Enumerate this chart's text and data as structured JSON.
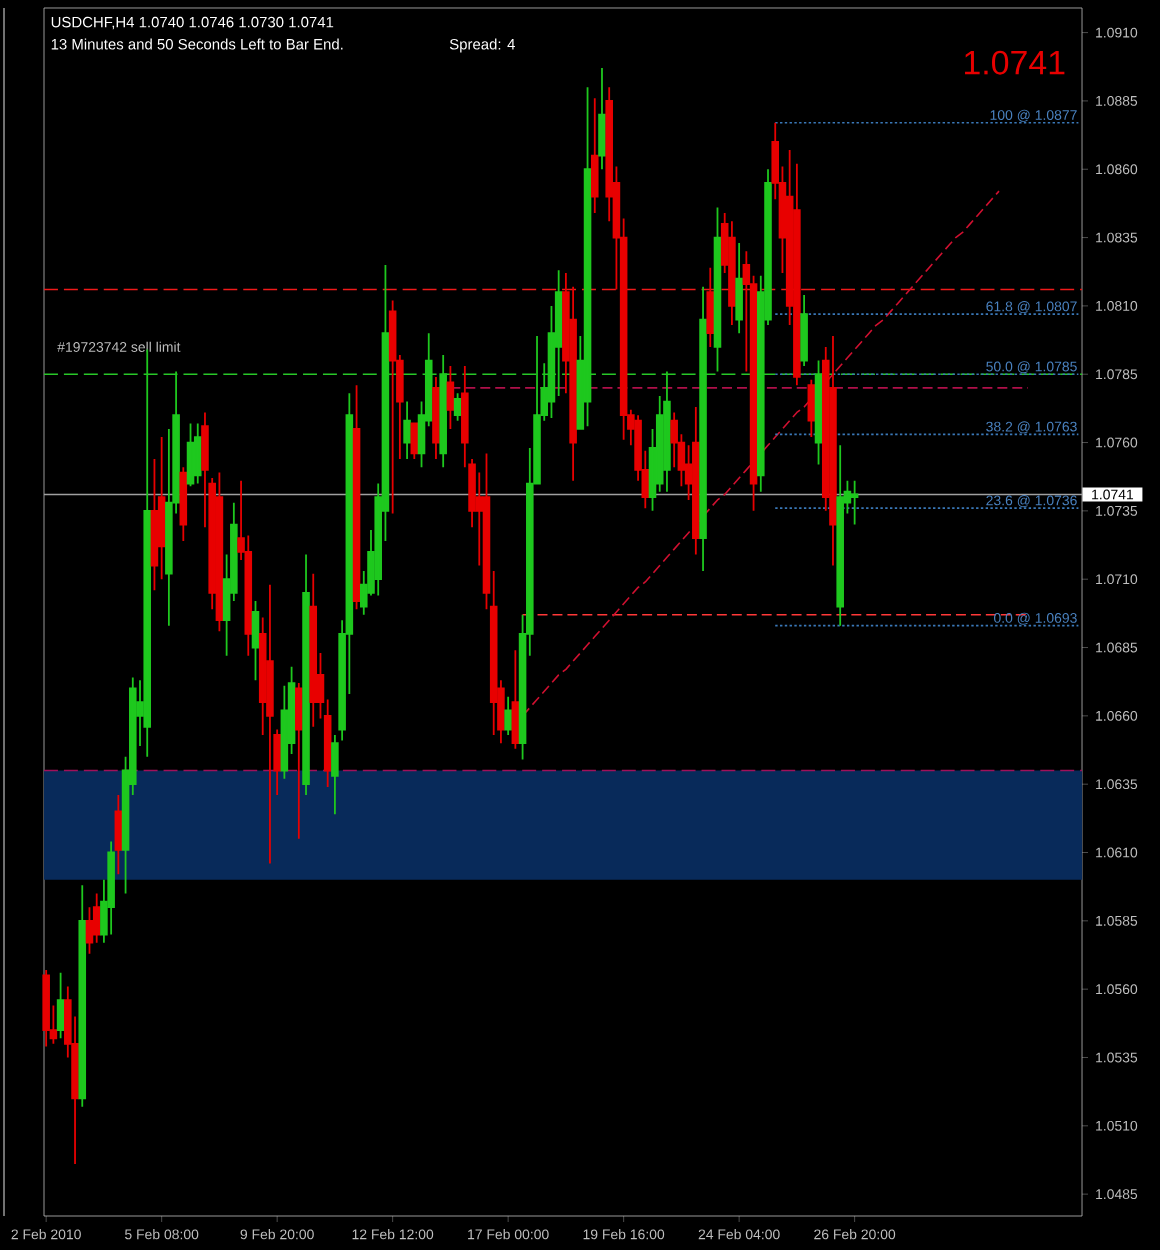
{
  "chart_data": {
    "type": "candlestick",
    "title": "USDCHF,H4  1.0740 1.0746 1.0730 1.0741",
    "subtitle": "13 Minutes and 50 Seconds Left to Bar End.",
    "annotations": [
      "Spread: 4",
      "1.0741",
      {
        "text": "100 @ 1.0877",
        "y": 1.0877
      },
      {
        "text": "61.8 @ 1.0807",
        "y": 1.0807
      },
      {
        "text": "50.0 @ 1.0785",
        "y": 1.0785
      },
      {
        "text": "38.2 @ 1.0763",
        "y": 1.0763
      },
      {
        "text": "23.6 @ 1.0736",
        "y": 1.0736
      },
      {
        "text": "0.0 @ 1.0693",
        "y": 1.0693
      }
    ],
    "categories": [
      "2 Feb 2010",
      null,
      null,
      null,
      null,
      null,
      null,
      null,
      null,
      null,
      null,
      null,
      null,
      null,
      null,
      null,
      "5 Feb 08:00",
      null,
      null,
      null,
      null,
      null,
      null,
      null,
      null,
      null,
      null,
      null,
      null,
      null,
      null,
      null,
      "9 Feb 20:00",
      null,
      null,
      null,
      null,
      null,
      null,
      null,
      null,
      null,
      null,
      null,
      null,
      null,
      null,
      null,
      "12 Feb 12:00",
      null,
      null,
      null,
      null,
      null,
      null,
      null,
      null,
      null,
      null,
      null,
      null,
      null,
      null,
      null,
      "17 Feb 00:00",
      null,
      null,
      null,
      null,
      null,
      null,
      null,
      null,
      null,
      null,
      null,
      null,
      null,
      null,
      null,
      "19 Feb 16:00",
      null,
      null,
      null,
      null,
      null,
      null,
      null,
      null,
      null,
      null,
      null,
      null,
      null,
      null,
      null,
      "24 Feb 04:00",
      null,
      null,
      null,
      null,
      null,
      null,
      null,
      null,
      null,
      null,
      null,
      null,
      null,
      null,
      null,
      "26 Feb 20:00",
      null,
      null,
      null,
      null,
      null,
      null,
      null,
      null,
      null,
      null,
      null,
      null,
      null,
      null,
      null,
      null,
      null,
      null,
      null,
      null,
      null,
      null,
      null,
      null,
      null,
      null,
      null,
      null,
      null,
      null,
      null
    ],
    "ohlc": [
      [
        1.0565,
        1.0567,
        1.0539,
        1.0545
      ],
      [
        1.0545,
        1.0554,
        1.054,
        1.0542
      ],
      [
        1.0545,
        1.0566,
        1.0542,
        1.0556
      ],
      [
        1.0556,
        1.0561,
        1.0535,
        1.054
      ],
      [
        1.054,
        1.055,
        1.0496,
        1.052
      ],
      [
        1.052,
        1.0598,
        1.0517,
        1.0585
      ],
      [
        1.0585,
        1.059,
        1.0573,
        1.0577
      ],
      [
        1.059,
        1.0595,
        1.0577,
        1.058
      ],
      [
        1.058,
        1.06,
        1.0577,
        1.0592
      ],
      [
        1.059,
        1.0614,
        1.058,
        1.061
      ],
      [
        1.0625,
        1.0631,
        1.0602,
        1.0611
      ],
      [
        1.0611,
        1.0645,
        1.0595,
        1.064
      ],
      [
        1.0635,
        1.0674,
        1.0631,
        1.067
      ],
      [
        1.066,
        1.0673,
        1.0649,
        1.0665
      ],
      [
        1.0656,
        1.0794,
        1.0645,
        1.0735
      ],
      [
        1.0735,
        1.0754,
        1.0706,
        1.0715
      ],
      [
        1.074,
        1.0762,
        1.071,
        1.0722
      ],
      [
        1.0712,
        1.0765,
        1.0693,
        1.0738
      ],
      [
        1.0738,
        1.0786,
        1.0734,
        1.077
      ],
      [
        1.0749,
        1.0751,
        1.0724,
        1.073
      ],
      [
        1.0745,
        1.0767,
        1.0744,
        1.076
      ],
      [
        1.0748,
        1.0767,
        1.0745,
        1.0762
      ],
      [
        1.0766,
        1.0771,
        1.0729,
        1.075
      ],
      [
        1.0745,
        1.0747,
        1.0699,
        1.0705
      ],
      [
        1.074,
        1.0749,
        1.0691,
        1.0695
      ],
      [
        1.0695,
        1.0719,
        1.0682,
        1.071
      ],
      [
        1.0705,
        1.0738,
        1.0702,
        1.073
      ],
      [
        1.0725,
        1.0746,
        1.0717,
        1.072
      ],
      [
        1.072,
        1.0726,
        1.0682,
        1.069
      ],
      [
        1.0685,
        1.0702,
        1.0673,
        1.0698
      ],
      [
        1.069,
        1.0696,
        1.0653,
        1.0665
      ],
      [
        1.068,
        1.0708,
        1.0606,
        1.066
      ],
      [
        1.0653,
        1.0655,
        1.0631,
        1.064
      ],
      [
        1.064,
        1.0671,
        1.0637,
        1.0662
      ],
      [
        1.065,
        1.0678,
        1.0646,
        1.0672
      ],
      [
        1.067,
        1.0672,
        1.0615,
        1.0655
      ],
      [
        1.0635,
        1.0719,
        1.0631,
        1.0705
      ],
      [
        1.07,
        1.0712,
        1.0656,
        1.0665
      ],
      [
        1.0675,
        1.0683,
        1.0659,
        1.0665
      ],
      [
        1.066,
        1.0666,
        1.0634,
        1.064
      ],
      [
        1.0638,
        1.0653,
        1.0624,
        1.065
      ],
      [
        1.0655,
        1.0695,
        1.0651,
        1.069
      ],
      [
        1.069,
        1.0778,
        1.0668,
        1.077
      ],
      [
        1.0765,
        1.0781,
        1.0699,
        1.0702
      ],
      [
        1.07,
        1.0713,
        1.0697,
        1.0708
      ],
      [
        1.0705,
        1.0728,
        1.0704,
        1.072
      ],
      [
        1.071,
        1.0745,
        1.0704,
        1.074
      ],
      [
        1.0735,
        1.0825,
        1.0724,
        1.08
      ],
      [
        1.0808,
        1.0812,
        1.0734,
        1.079
      ],
      [
        1.079,
        1.0792,
        1.0754,
        1.0775
      ],
      [
        1.076,
        1.0775,
        1.0754,
        1.0768
      ],
      [
        1.0767,
        1.0767,
        1.0754,
        1.0756
      ],
      [
        1.0756,
        1.0775,
        1.0751,
        1.077
      ],
      [
        1.0768,
        1.08,
        1.0766,
        1.079
      ],
      [
        1.078,
        1.0784,
        1.0754,
        1.076
      ],
      [
        1.0756,
        1.0792,
        1.0751,
        1.0785
      ],
      [
        1.0782,
        1.0788,
        1.0765,
        1.0772
      ],
      [
        1.077,
        1.0778,
        1.0768,
        1.0776
      ],
      [
        1.0778,
        1.0788,
        1.0751,
        1.076
      ],
      [
        1.0752,
        1.0754,
        1.0729,
        1.0735
      ],
      [
        1.074,
        1.0749,
        1.0715,
        1.0735
      ],
      [
        1.074,
        1.0756,
        1.0699,
        1.0705
      ],
      [
        1.07,
        1.0713,
        1.0653,
        1.0665
      ],
      [
        1.067,
        1.0673,
        1.065,
        1.0655
      ],
      [
        1.0655,
        1.0667,
        1.0653,
        1.0662
      ],
      [
        1.0665,
        1.0684,
        1.0648,
        1.065
      ],
      [
        1.065,
        1.0697,
        1.0644,
        1.069
      ],
      [
        1.069,
        1.0758,
        1.0682,
        1.0745
      ],
      [
        1.0745,
        1.0799,
        1.0745,
        1.077
      ],
      [
        1.077,
        1.0789,
        1.0768,
        1.078
      ],
      [
        1.0775,
        1.081,
        1.0769,
        1.08
      ],
      [
        1.0795,
        1.0823,
        1.0777,
        1.0815
      ],
      [
        1.0815,
        1.0822,
        1.0778,
        1.079
      ],
      [
        1.0805,
        1.0817,
        1.0746,
        1.076
      ],
      [
        1.0765,
        1.0799,
        1.0765,
        1.079
      ],
      [
        1.0775,
        1.089,
        1.0766,
        1.086
      ],
      [
        1.0865,
        1.0886,
        1.0844,
        1.085
      ],
      [
        1.0865,
        1.0897,
        1.086,
        1.088
      ],
      [
        1.0885,
        1.089,
        1.0841,
        1.085
      ],
      [
        1.0855,
        1.0861,
        1.0816,
        1.0835
      ],
      [
        1.0835,
        1.0842,
        1.0761,
        1.077
      ],
      [
        1.077,
        1.0772,
        1.0759,
        1.0765
      ],
      [
        1.0768,
        1.077,
        1.0746,
        1.075
      ],
      [
        1.075,
        1.0757,
        1.0736,
        1.074
      ],
      [
        1.074,
        1.0765,
        1.0735,
        1.0758
      ],
      [
        1.0745,
        1.0777,
        1.0742,
        1.077
      ],
      [
        1.075,
        1.0786,
        1.0742,
        1.0775
      ],
      [
        1.0768,
        1.0771,
        1.0751,
        1.076
      ],
      [
        1.076,
        1.0763,
        1.0744,
        1.075
      ],
      [
        1.0752,
        1.0759,
        1.0739,
        1.0745
      ],
      [
        1.076,
        1.0773,
        1.0719,
        1.0725
      ],
      [
        1.0725,
        1.0817,
        1.0713,
        1.0805
      ],
      [
        1.0815,
        1.0824,
        1.0795,
        1.08
      ],
      [
        1.0795,
        1.0846,
        1.0786,
        1.0835
      ],
      [
        1.084,
        1.0844,
        1.0822,
        1.0825
      ],
      [
        1.0835,
        1.0841,
        1.0803,
        1.081
      ],
      [
        1.0805,
        1.0833,
        1.08,
        1.082
      ],
      [
        1.0825,
        1.083,
        1.0786,
        1.0818
      ],
      [
        1.0818,
        1.0821,
        1.0735,
        1.0745
      ],
      [
        1.0748,
        1.0821,
        1.0742,
        1.0815
      ],
      [
        1.0805,
        1.086,
        1.0803,
        1.0855
      ],
      [
        1.087,
        1.0877,
        1.0849,
        1.0855
      ],
      [
        1.0855,
        1.0861,
        1.0822,
        1.0835
      ],
      [
        1.085,
        1.0867,
        1.0803,
        1.081
      ],
      [
        1.0845,
        1.0862,
        1.0781,
        1.0784
      ],
      [
        1.079,
        1.0814,
        1.0788,
        1.0807
      ],
      [
        1.0781,
        1.0783,
        1.0762,
        1.0768
      ],
      [
        1.076,
        1.079,
        1.0752,
        1.0785
      ],
      [
        1.079,
        1.0795,
        1.0735,
        1.074
      ],
      [
        1.078,
        1.0799,
        1.0715,
        1.073
      ],
      [
        1.07,
        1.0759,
        1.0693,
        1.074
      ],
      [
        1.0738,
        1.0746,
        1.0734,
        1.0742
      ],
      [
        1.074,
        1.0746,
        1.073,
        1.0741
      ],
      null,
      null,
      null,
      null,
      null,
      null,
      null,
      null,
      null,
      null,
      null,
      null,
      null,
      null,
      null,
      null,
      null,
      null,
      null,
      null,
      null,
      null,
      null,
      null,
      null,
      null,
      null,
      null,
      null,
      null,
      null
    ],
    "colors": [
      "#e80000",
      "#e80000",
      "#1ec81e",
      "#e80000",
      "#e80000",
      "#1ec81e",
      "#e80000",
      "#e80000",
      "#1ec81e",
      "#1ec81e",
      "#e80000",
      "#1ec81e",
      "#1ec81e",
      "#1ec81e",
      "#1ec81e",
      "#e80000",
      "#e80000",
      "#1ec81e",
      "#1ec81e",
      "#e80000",
      "#1ec81e",
      "#1ec81e",
      "#e80000",
      "#e80000",
      "#e80000",
      "#1ec81e",
      "#1ec81e",
      "#e80000",
      "#e80000",
      "#1ec81e",
      "#e80000",
      "#e80000",
      "#e80000",
      "#1ec81e",
      "#1ec81e",
      "#e80000",
      "#1ec81e",
      "#e80000",
      "#e80000",
      "#e80000",
      "#1ec81e",
      "#1ec81e",
      "#1ec81e",
      "#e80000",
      "#1ec81e",
      "#1ec81e",
      "#1ec81e",
      "#1ec81e",
      "#e80000",
      "#e80000",
      "#1ec81e",
      "#e80000",
      "#1ec81e",
      "#1ec81e",
      "#e80000",
      "#1ec81e",
      "#e80000",
      "#1ec81e",
      "#e80000",
      "#e80000",
      "#e80000",
      "#e80000",
      "#e80000",
      "#e80000",
      "#1ec81e",
      "#e80000",
      "#1ec81e",
      "#1ec81e",
      "#1ec81e",
      "#1ec81e",
      "#1ec81e",
      "#1ec81e",
      "#e80000",
      "#e80000",
      "#1ec81e",
      "#1ec81e",
      "#e80000",
      "#1ec81e",
      "#e80000",
      "#e80000",
      "#e80000",
      "#e80000",
      "#e80000",
      "#e80000",
      "#1ec81e",
      "#1ec81e",
      "#1ec81e",
      "#e80000",
      "#e80000",
      "#e80000",
      "#e80000",
      "#1ec81e",
      "#e80000",
      "#1ec81e",
      "#e80000",
      "#e80000",
      "#1ec81e",
      "#e80000",
      "#e80000",
      "#1ec81e",
      "#1ec81e",
      "#e80000",
      "#e80000",
      "#e80000",
      "#e80000",
      "#1ec81e",
      "#e80000",
      "#1ec81e",
      "#e80000",
      "#e80000",
      "#1ec81e",
      "#1ec81e",
      "#1ec81e",
      null,
      null,
      null,
      null,
      null,
      null,
      null,
      null,
      null,
      null,
      null,
      null,
      null,
      null,
      null,
      null,
      null,
      null,
      null,
      null,
      null,
      null,
      null,
      null,
      null,
      null,
      null,
      null,
      null,
      null,
      null
    ],
    "series": [
      {
        "type": "line",
        "color": "#b0104a",
        "line_style": "dashed",
        "values": [
          null,
          null,
          null,
          null,
          null,
          null,
          null,
          null,
          null,
          null,
          null,
          null,
          null,
          null,
          null,
          null,
          null,
          null,
          null,
          null,
          null,
          null,
          null,
          null,
          null,
          null,
          null,
          null,
          null,
          null,
          null,
          null,
          null,
          null,
          null,
          null,
          null,
          null,
          null,
          null,
          null,
          null,
          null,
          null,
          null,
          null,
          null,
          null,
          null,
          null,
          null,
          null,
          null,
          null,
          null,
          null,
          1.078,
          1.078,
          1.078,
          1.078,
          1.078,
          1.078,
          1.078,
          1.078,
          1.078,
          1.078,
          1.078,
          1.078,
          1.078,
          1.078,
          1.078,
          1.078,
          1.078,
          null,
          null,
          1.078,
          1.078,
          1.078,
          1.078,
          1.078,
          1.078,
          1.078,
          1.078,
          1.078,
          1.078,
          1.078,
          1.078,
          1.078,
          1.078,
          1.078,
          1.078,
          1.078,
          1.078,
          1.078,
          1.078,
          1.078,
          1.078,
          1.078,
          1.078,
          1.078,
          1.078,
          1.078,
          1.078,
          1.078,
          1.078,
          1.078,
          1.078,
          null,
          null,
          1.078,
          1.078,
          1.078,
          1.078,
          1.078,
          1.078,
          1.078,
          1.078,
          1.078,
          1.078,
          1.078,
          1.078,
          1.078,
          1.078,
          1.078,
          1.078,
          1.078,
          1.078,
          1.078,
          1.078,
          1.078,
          1.078,
          1.078,
          1.078,
          1.078,
          1.078,
          1.078,
          1.078,
          null,
          null,
          null,
          null,
          null,
          null,
          null
        ]
      },
      {
        "type": "line",
        "color": "#ff3838",
        "line_style": "dashed",
        "values": [
          null,
          null,
          null,
          null,
          null,
          null,
          null,
          null,
          null,
          null,
          null,
          null,
          null,
          null,
          null,
          null,
          null,
          null,
          null,
          null,
          null,
          null,
          null,
          null,
          null,
          null,
          null,
          null,
          null,
          null,
          null,
          null,
          null,
          null,
          null,
          null,
          null,
          null,
          null,
          null,
          null,
          null,
          null,
          null,
          null,
          null,
          null,
          null,
          null,
          null,
          null,
          null,
          null,
          null,
          null,
          null,
          null,
          null,
          null,
          null,
          null,
          null,
          null,
          null,
          null,
          null,
          1.0697,
          1.0697,
          1.0697,
          1.0697,
          1.0697,
          1.0697,
          1.0697,
          1.0697,
          1.0697,
          1.0697,
          1.0697,
          1.0697,
          1.0697,
          1.0697,
          1.0697,
          1.0697,
          1.0697,
          1.0697,
          1.0697,
          1.0697,
          1.0697,
          1.0697,
          1.0697,
          1.0697,
          1.0697,
          1.0697,
          1.0697,
          1.0697,
          1.0697,
          1.0697,
          1.0697,
          1.0697,
          1.0697,
          1.0697,
          1.0697,
          1.0697,
          1.0697,
          1.0697,
          1.0697,
          1.0697,
          1.0697,
          1.0697,
          1.0697,
          1.0697,
          1.0697,
          1.0697,
          1.0697,
          1.0697,
          1.0697,
          1.0697,
          1.0697,
          1.0697,
          1.0697,
          1.0697,
          1.0697,
          1.0697,
          1.0697,
          1.0697,
          1.0697,
          1.0697,
          1.0697,
          1.0697,
          1.0697,
          1.0697,
          1.0697,
          1.0697,
          1.0697,
          1.0697,
          1.0697,
          1.0697,
          1.0697,
          null,
          null,
          null,
          null,
          null,
          null,
          null
        ]
      },
      {
        "type": "line",
        "color": "#d01030",
        "line_style": "dashed",
        "values": [
          null,
          null,
          null,
          null,
          null,
          null,
          null,
          null,
          null,
          null,
          null,
          null,
          null,
          null,
          null,
          null,
          null,
          null,
          null,
          null,
          null,
          null,
          null,
          null,
          null,
          null,
          null,
          null,
          null,
          null,
          null,
          null,
          null,
          null,
          null,
          null,
          null,
          null,
          null,
          null,
          null,
          null,
          null,
          null,
          null,
          null,
          null,
          null,
          null,
          null,
          null,
          null,
          null,
          null,
          null,
          null,
          null,
          null,
          null,
          null,
          null,
          null,
          null,
          null,
          null,
          null,
          1.066,
          1.0663,
          1.0666,
          1.0669,
          1.0672,
          1.0675,
          1.0677,
          1.068,
          1.0683,
          1.0686,
          1.0689,
          1.0692,
          1.0695,
          1.0698,
          1.0701,
          1.0704,
          1.0707,
          1.0709,
          1.0712,
          1.0715,
          1.0718,
          1.0721,
          1.0724,
          1.0727,
          1.073,
          1.0733,
          1.0736,
          1.0739,
          1.0741,
          1.0744,
          1.0747,
          1.075,
          1.0753,
          1.0756,
          1.0759,
          1.0762,
          1.0765,
          1.0768,
          1.0771,
          1.0773,
          1.0776,
          null,
          1.0782,
          1.0785,
          1.0788,
          1.0791,
          1.0794,
          1.0797,
          1.08,
          1.0803,
          1.0805,
          1.0808,
          1.0811,
          1.0814,
          1.0817,
          1.082,
          1.0823,
          1.0826,
          1.0829,
          1.0832,
          1.0835,
          1.0837,
          1.084,
          1.0843,
          1.0846,
          1.0849,
          1.0852,
          null,
          null,
          null,
          null,
          null,
          null,
          null,
          null,
          null,
          null,
          null
        ]
      },
      {
        "type": "line",
        "color": "#3a78b8",
        "line_style": "dotted",
        "values": [
          null,
          null,
          null,
          null,
          null,
          null,
          null,
          null,
          null,
          null,
          null,
          null,
          null,
          null,
          null,
          null,
          null,
          null,
          null,
          null,
          null,
          null,
          null,
          null,
          null,
          null,
          null,
          null,
          null,
          null,
          null,
          null,
          null,
          null,
          null,
          null,
          null,
          null,
          null,
          null,
          null,
          null,
          null,
          null,
          null,
          null,
          null,
          null,
          null,
          null,
          null,
          null,
          null,
          null,
          null,
          null,
          null,
          null,
          null,
          null,
          null,
          null,
          null,
          null,
          null,
          null,
          null,
          null,
          null,
          null,
          null,
          null,
          null,
          null,
          null,
          null,
          null,
          null,
          null,
          null,
          null,
          null,
          null,
          null,
          null,
          null,
          null,
          null,
          null,
          null,
          null,
          null,
          null,
          null,
          null,
          null,
          null,
          null,
          null,
          null,
          null,
          1.0877,
          1.0877,
          1.0877,
          1.0877,
          1.0877,
          1.0877,
          1.0877,
          1.0877,
          1.0877,
          1.0877,
          1.0877,
          1.0877,
          1.0877,
          1.0877,
          1.0877,
          1.0877,
          1.0877,
          1.0877,
          1.0877,
          1.0877,
          1.0877,
          1.0877,
          1.0877,
          1.0877,
          1.0877,
          1.0877,
          1.0877,
          1.0877,
          1.0877,
          1.0877,
          1.0877,
          1.0877,
          1.0877,
          1.0877,
          1.0877,
          1.0877,
          1.0877,
          1.0877,
          1.0877,
          1.0877,
          1.0877,
          1.0877,
          1.0877
        ]
      },
      {
        "type": "line",
        "color": "#3a78b8",
        "line_style": "dotted",
        "values": [
          null,
          null,
          null,
          null,
          null,
          null,
          null,
          null,
          null,
          null,
          null,
          null,
          null,
          null,
          null,
          null,
          null,
          null,
          null,
          null,
          null,
          null,
          null,
          null,
          null,
          null,
          null,
          null,
          null,
          null,
          null,
          null,
          null,
          null,
          null,
          null,
          null,
          null,
          null,
          null,
          null,
          null,
          null,
          null,
          null,
          null,
          null,
          null,
          null,
          null,
          null,
          null,
          null,
          null,
          null,
          null,
          null,
          null,
          null,
          null,
          null,
          null,
          null,
          null,
          null,
          null,
          null,
          null,
          null,
          null,
          null,
          null,
          null,
          null,
          null,
          null,
          null,
          null,
          null,
          null,
          null,
          null,
          null,
          null,
          null,
          null,
          null,
          null,
          null,
          null,
          null,
          null,
          null,
          null,
          null,
          null,
          null,
          null,
          null,
          null,
          null,
          1.0807,
          1.0807,
          1.0807,
          1.0807,
          1.0807,
          1.0807,
          1.0807,
          1.0807,
          1.0807,
          1.0807,
          1.0807,
          1.0807,
          1.0807,
          1.0807,
          1.0807,
          1.0807,
          1.0807,
          1.0807,
          1.0807,
          1.0807,
          1.0807,
          1.0807,
          1.0807,
          1.0807,
          1.0807,
          1.0807,
          1.0807,
          1.0807,
          1.0807,
          1.0807,
          1.0807,
          1.0807,
          1.0807,
          1.0807,
          1.0807,
          1.0807,
          1.0807,
          1.0807,
          1.0807,
          1.0807,
          1.0807,
          1.0807,
          1.0807
        ]
      },
      {
        "type": "line",
        "color": "#3a78b8",
        "line_style": "dotted",
        "values": [
          null,
          null,
          null,
          null,
          null,
          null,
          null,
          null,
          null,
          null,
          null,
          null,
          null,
          null,
          null,
          null,
          null,
          null,
          null,
          null,
          null,
          null,
          null,
          null,
          null,
          null,
          null,
          null,
          null,
          null,
          null,
          null,
          null,
          null,
          null,
          null,
          null,
          null,
          null,
          null,
          null,
          null,
          null,
          null,
          null,
          null,
          null,
          null,
          null,
          null,
          null,
          null,
          null,
          null,
          null,
          null,
          null,
          null,
          null,
          null,
          null,
          null,
          null,
          null,
          null,
          null,
          null,
          null,
          null,
          null,
          null,
          null,
          null,
          null,
          null,
          null,
          null,
          null,
          null,
          null,
          null,
          null,
          null,
          null,
          null,
          null,
          null,
          null,
          null,
          null,
          null,
          null,
          null,
          null,
          null,
          null,
          null,
          null,
          null,
          null,
          null,
          1.0785,
          1.0785,
          1.0785,
          1.0785,
          1.0785,
          1.0785,
          1.0785,
          null,
          1.0785,
          1.0785,
          1.0785,
          1.0785,
          1.0785,
          1.0785,
          1.0785,
          1.0785,
          1.0785,
          1.0785,
          1.0785,
          1.0785,
          1.0785,
          1.0785,
          1.0785,
          1.0785,
          1.0785,
          1.0785,
          1.0785,
          1.0785,
          1.0785,
          1.0785,
          1.0785,
          1.0785,
          1.0785,
          1.0785,
          1.0785,
          1.0785,
          1.0785,
          1.0785,
          1.0785,
          1.0785,
          1.0785,
          1.0785,
          1.0785
        ]
      },
      {
        "type": "line",
        "color": "#3a78b8",
        "line_style": "dotted",
        "values": [
          null,
          null,
          null,
          null,
          null,
          null,
          null,
          null,
          null,
          null,
          null,
          null,
          null,
          null,
          null,
          null,
          null,
          null,
          null,
          null,
          null,
          null,
          null,
          null,
          null,
          null,
          null,
          null,
          null,
          null,
          null,
          null,
          null,
          null,
          null,
          null,
          null,
          null,
          null,
          null,
          null,
          null,
          null,
          null,
          null,
          null,
          null,
          null,
          null,
          null,
          null,
          null,
          null,
          null,
          null,
          null,
          null,
          null,
          null,
          null,
          null,
          null,
          null,
          null,
          null,
          null,
          null,
          null,
          null,
          null,
          null,
          null,
          null,
          null,
          null,
          null,
          null,
          null,
          null,
          null,
          null,
          null,
          null,
          null,
          null,
          null,
          null,
          null,
          null,
          null,
          null,
          null,
          null,
          null,
          null,
          null,
          null,
          null,
          null,
          null,
          null,
          1.0763,
          1.0763,
          1.0763,
          1.0763,
          1.0763,
          1.0763,
          1.0763,
          null,
          1.0763,
          1.0763,
          1.0763,
          1.0763,
          1.0763,
          1.0763,
          1.0763,
          1.0763,
          1.0763,
          1.0763,
          1.0763,
          1.0763,
          1.0763,
          1.0763,
          1.0763,
          1.0763,
          1.0763,
          1.0763,
          1.0763,
          1.0763,
          1.0763,
          1.0763,
          1.0763,
          1.0763,
          1.0763,
          1.0763,
          1.0763,
          1.0763,
          1.0763,
          1.0763,
          1.0763,
          1.0763,
          1.0763,
          1.0763,
          1.0763
        ]
      },
      {
        "type": "line",
        "color": "#3a78b8",
        "line_style": "dotted",
        "values": [
          null,
          null,
          null,
          null,
          null,
          null,
          null,
          null,
          null,
          null,
          null,
          null,
          null,
          null,
          null,
          null,
          null,
          null,
          null,
          null,
          null,
          null,
          null,
          null,
          null,
          null,
          null,
          null,
          null,
          null,
          null,
          null,
          null,
          null,
          null,
          null,
          null,
          null,
          null,
          null,
          null,
          null,
          null,
          null,
          null,
          null,
          null,
          null,
          null,
          null,
          null,
          null,
          null,
          null,
          null,
          null,
          null,
          null,
          null,
          null,
          null,
          null,
          null,
          null,
          null,
          null,
          null,
          null,
          null,
          null,
          null,
          null,
          null,
          null,
          null,
          null,
          null,
          null,
          null,
          null,
          null,
          null,
          null,
          null,
          null,
          null,
          null,
          null,
          null,
          null,
          null,
          null,
          null,
          null,
          null,
          null,
          null,
          null,
          null,
          null,
          null,
          1.0736,
          1.0736,
          1.0736,
          1.0736,
          1.0736,
          1.0736,
          1.0736,
          1.0736,
          1.0736,
          1.0736,
          1.0736,
          1.0736,
          1.0736,
          1.0736,
          1.0736,
          1.0736,
          1.0736,
          1.0736,
          1.0736,
          1.0736,
          1.0736,
          1.0736,
          1.0736,
          1.0736,
          1.0736,
          1.0736,
          1.0736,
          1.0736,
          1.0736,
          1.0736,
          1.0736,
          1.0736,
          1.0736,
          1.0736,
          1.0736,
          1.0736,
          1.0736,
          1.0736,
          1.0736,
          1.0736,
          1.0736,
          1.0736,
          1.0736
        ]
      },
      {
        "type": "line",
        "color": "#3a78b8",
        "line_style": "dotted",
        "values": [
          null,
          null,
          null,
          null,
          null,
          null,
          null,
          null,
          null,
          null,
          null,
          null,
          null,
          null,
          null,
          null,
          null,
          null,
          null,
          null,
          null,
          null,
          null,
          null,
          null,
          null,
          null,
          null,
          null,
          null,
          null,
          null,
          null,
          null,
          null,
          null,
          null,
          null,
          null,
          null,
          null,
          null,
          null,
          null,
          null,
          null,
          null,
          null,
          null,
          null,
          null,
          null,
          null,
          null,
          null,
          null,
          null,
          null,
          null,
          null,
          null,
          null,
          null,
          null,
          null,
          null,
          null,
          null,
          null,
          null,
          null,
          null,
          null,
          null,
          null,
          null,
          null,
          null,
          null,
          null,
          null,
          null,
          null,
          null,
          null,
          null,
          null,
          null,
          null,
          null,
          null,
          null,
          null,
          null,
          null,
          null,
          null,
          null,
          null,
          null,
          null,
          1.0693,
          1.0693,
          1.0693,
          1.0693,
          1.0693,
          1.0693,
          1.0693,
          1.0693,
          1.0693,
          1.0693,
          1.0693,
          1.0693,
          1.0693,
          1.0693,
          1.0693,
          1.0693,
          1.0693,
          1.0693,
          1.0693,
          1.0693,
          1.0693,
          1.0693,
          1.0693,
          1.0693,
          1.0693,
          1.0693,
          1.0693,
          1.0693,
          1.0693,
          1.0693,
          1.0693,
          1.0693,
          1.0693,
          1.0693,
          1.0693,
          1.0693,
          1.0693,
          1.0693,
          1.0693,
          1.0693,
          1.0693,
          1.0693,
          1.0693
        ]
      }
    ],
    "ref_lines": [
      {
        "axis": "y",
        "value": 1.0816,
        "color": "#f01a1a",
        "line_style": "dashed"
      },
      {
        "axis": "y",
        "value": 1.0785,
        "color": "#28c828",
        "line_style": "dashed",
        "label": "#19723742 sell limit"
      },
      {
        "axis": "y",
        "value": 1.0741,
        "color": "#a0a0a0",
        "line_style": "solid",
        "label": "1.0741"
      },
      {
        "axis": "y",
        "value": 1.064,
        "color": "#a0105a",
        "line_style": "dashed"
      }
    ],
    "bands": [
      {
        "axis": "y",
        "from": 1.06,
        "to": 1.064,
        "color": "#082a5a"
      }
    ],
    "ylim": [
      1.0477,
      1.0919
    ],
    "yticks": [
      {
        "value": 1.0485,
        "label": "1.0485"
      },
      {
        "value": 1.051,
        "label": "1.0510"
      },
      {
        "value": 1.0535,
        "label": "1.0535"
      },
      {
        "value": 1.056,
        "label": "1.0560"
      },
      {
        "value": 1.0585,
        "label": "1.0585"
      },
      {
        "value": 1.061,
        "label": "1.0610"
      },
      {
        "value": 1.0635,
        "label": "1.0635"
      },
      {
        "value": 1.066,
        "label": "1.0660"
      },
      {
        "value": 1.0685,
        "label": "1.0685"
      },
      {
        "value": 1.071,
        "label": "1.0710"
      },
      {
        "value": 1.0735,
        "label": "1.0735"
      },
      {
        "value": 1.076,
        "label": "1.0760"
      },
      {
        "value": 1.0785,
        "label": "1.0785"
      },
      {
        "value": 1.081,
        "label": "1.0810"
      },
      {
        "value": 1.0835,
        "label": "1.0835"
      },
      {
        "value": 1.086,
        "label": "1.0860"
      },
      {
        "value": 1.0885,
        "label": "1.0885"
      },
      {
        "value": 1.091,
        "label": "1.0910"
      }
    ]
  }
}
